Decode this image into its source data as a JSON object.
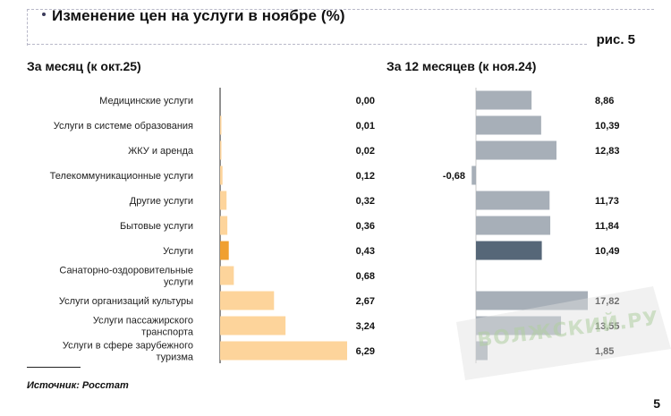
{
  "header": {
    "title": "Изменение цен на услуги в ноябре (%)",
    "figure_label": "рис. 5"
  },
  "footer": {
    "source": "Источник: Росстат",
    "page_number": "5"
  },
  "watermark": {
    "text": "ВОЛЖСКИЙ.РУ"
  },
  "colors": {
    "month_bar": "#fdd49b",
    "month_highlight": "#f0a030",
    "year_bar": "#a7afb8",
    "year_highlight": "#566778",
    "axis": "#222222"
  },
  "chart_data": [
    {
      "type": "bar",
      "orientation": "horizontal",
      "title": "За месяц (к окт.25)",
      "categories": [
        "Медицинские услуги",
        "Услуги в системе образования",
        "ЖКУ и аренда",
        "Телекоммуникационные услуги",
        "Другие услуги",
        "Бытовые услуги",
        "Услуги",
        "Санаторно-оздоровительные услуги",
        "Услуги организаций культуры",
        "Услуги пассажирского транспорта",
        "Услуги в сфере зарубежного туризма"
      ],
      "category_lines": [
        [
          "Медицинские услуги"
        ],
        [
          "Услуги в системе образования"
        ],
        [
          "ЖКУ и аренда"
        ],
        [
          "Телекоммуникационные услуги"
        ],
        [
          "Другие услуги"
        ],
        [
          "Бытовые услуги"
        ],
        [
          "Услуги"
        ],
        [
          "Санаторно-оздоровительные",
          "услуги"
        ],
        [
          "Услуги организаций культуры"
        ],
        [
          "Услуги пассажирского",
          "транспорта"
        ],
        [
          "Услуги в сфере зарубежного",
          "туризма"
        ]
      ],
      "values": [
        0.0,
        0.01,
        0.02,
        0.12,
        0.32,
        0.36,
        0.43,
        0.68,
        2.67,
        3.24,
        6.29
      ],
      "labels": [
        "0,00",
        "0,01",
        "0,02",
        "0,12",
        "0,32",
        "0,36",
        "0,43",
        "0,68",
        "2,67",
        "3,24",
        "6,29"
      ],
      "highlight_index": 6,
      "xlim": [
        0,
        6.29
      ]
    },
    {
      "type": "bar",
      "orientation": "horizontal",
      "title": "За 12 месяцев (к ноя.24)",
      "values": [
        8.86,
        10.39,
        12.83,
        -0.68,
        11.73,
        11.84,
        10.49,
        null,
        17.82,
        13.55,
        1.85
      ],
      "labels": [
        "8,86",
        "10,39",
        "12,83",
        "-0,68",
        "11,73",
        "11,84",
        "10,49",
        "",
        "17,82",
        "13,55",
        "1,85"
      ],
      "highlight_index": 6,
      "xlim": [
        -0.68,
        17.82
      ]
    }
  ]
}
